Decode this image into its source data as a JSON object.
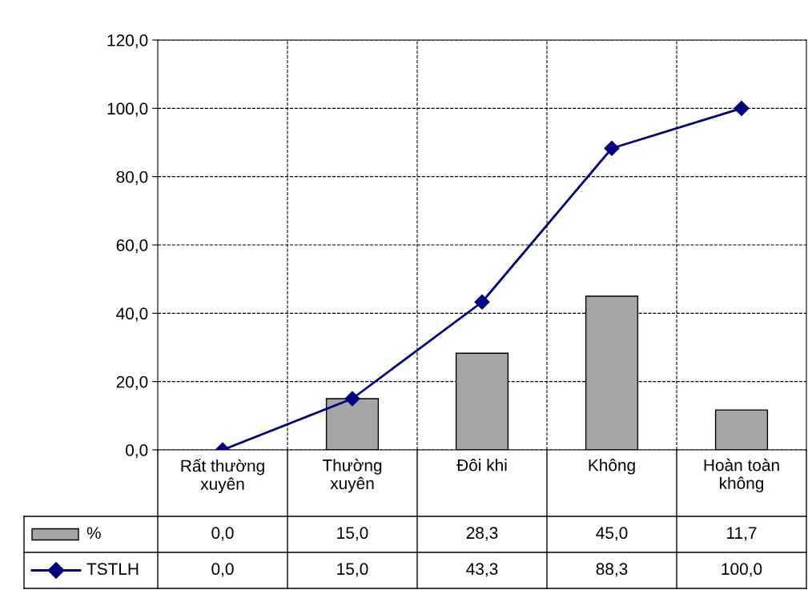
{
  "chart_data": {
    "type": "bar",
    "categories": [
      "Rất thường\nxuyên",
      "Thường\nxuyên",
      "Đôi khi",
      "Không",
      "Hoàn toàn\nkhông"
    ],
    "series": [
      {
        "name": "%",
        "color": "#a6a6a6",
        "values": [
          0.0,
          15.0,
          28.3,
          45.0,
          11.7
        ],
        "value_labels": [
          "0,0",
          "15,0",
          "28,3",
          "45,0",
          "11,7"
        ]
      },
      {
        "name": "TSTLH",
        "type": "line",
        "color": "#000080",
        "marker": "diamond",
        "values": [
          0.0,
          15.0,
          43.3,
          88.3,
          100.0
        ],
        "value_labels": [
          "0,0",
          "15,0",
          "43,3",
          "88,3",
          "100,0"
        ]
      }
    ],
    "ylim": [
      0,
      120
    ],
    "yticks": [
      {
        "value": 0,
        "label": "0,0"
      },
      {
        "value": 20,
        "label": "20,0"
      },
      {
        "value": 40,
        "label": "40,0"
      },
      {
        "value": 60,
        "label": "60,0"
      },
      {
        "value": 80,
        "label": "80,0"
      },
      {
        "value": 100,
        "label": "100,0"
      },
      {
        "value": 120,
        "label": "120,0"
      }
    ],
    "grid": true,
    "line_style": "solid",
    "legend": "bottom left"
  }
}
